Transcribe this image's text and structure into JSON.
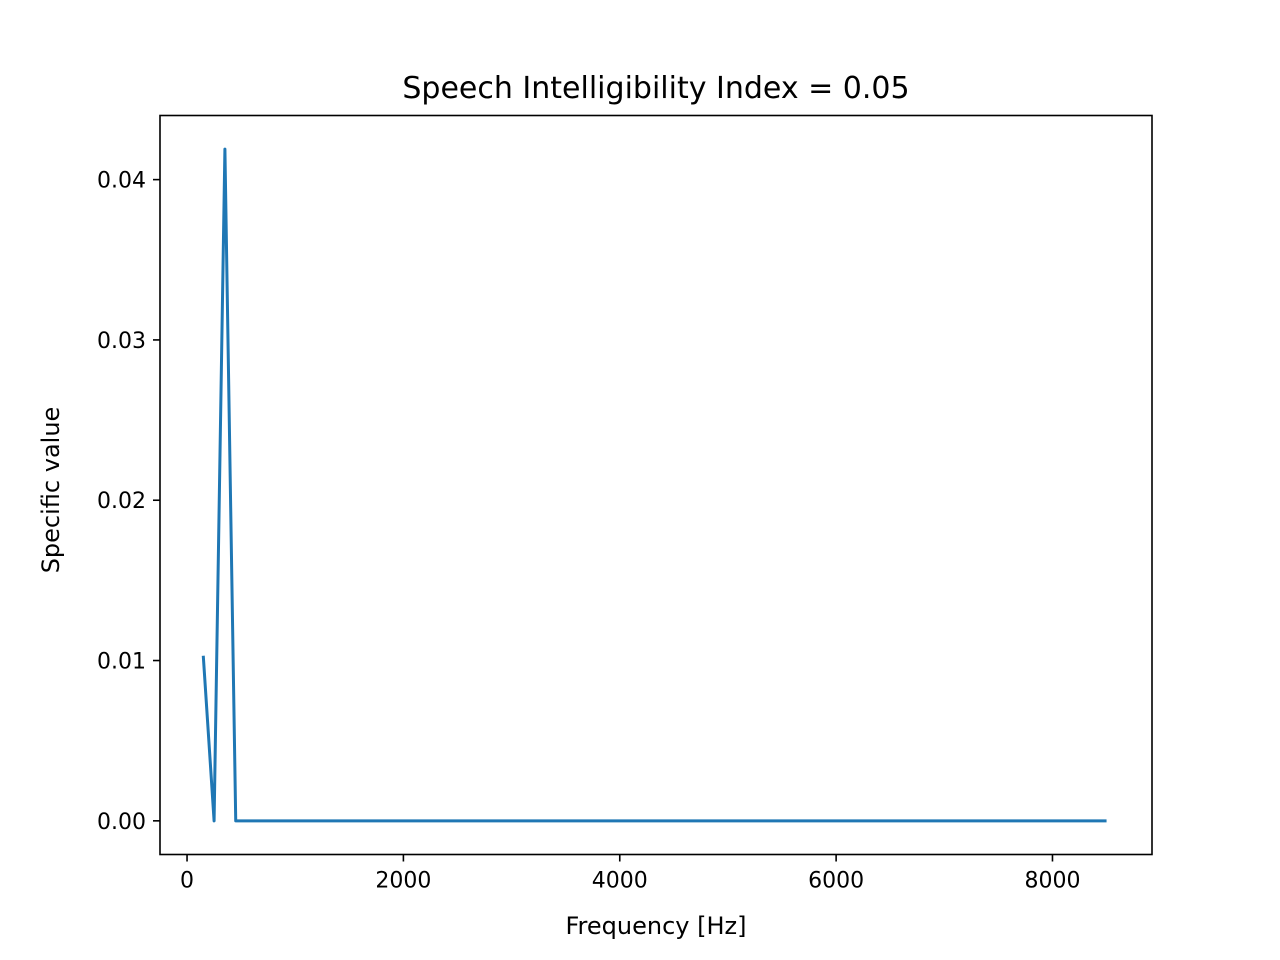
{
  "chart_data": {
    "type": "line",
    "title": "Speech Intelligibility Index = 0.05",
    "xlabel": "Frequency [Hz]",
    "ylabel": "Specific value",
    "xlim": [
      -250,
      8920
    ],
    "ylim": [
      -0.0021,
      0.044
    ],
    "xticks": [
      0,
      2000,
      4000,
      6000,
      8000
    ],
    "xtick_labels": [
      "0",
      "2000",
      "4000",
      "6000",
      "8000"
    ],
    "yticks": [
      0.0,
      0.01,
      0.02,
      0.03,
      0.04
    ],
    "ytick_labels": [
      "0.00",
      "0.01",
      "0.02",
      "0.03",
      "0.04"
    ],
    "grid": false,
    "series": [
      {
        "color": "#1f77b4",
        "x": [
          150,
          250,
          350,
          450,
          570,
          700,
          840,
          1000,
          1170,
          1370,
          1600,
          1850,
          2150,
          2500,
          2900,
          3400,
          4000,
          4800,
          5800,
          7000,
          8500
        ],
        "y": [
          0.0103,
          0.0,
          0.0419,
          0.0,
          0.0,
          0.0,
          0.0,
          0.0,
          0.0,
          0.0,
          0.0,
          0.0,
          0.0,
          0.0,
          0.0,
          0.0,
          0.0,
          0.0,
          0.0,
          0.0,
          0.0
        ]
      }
    ]
  }
}
